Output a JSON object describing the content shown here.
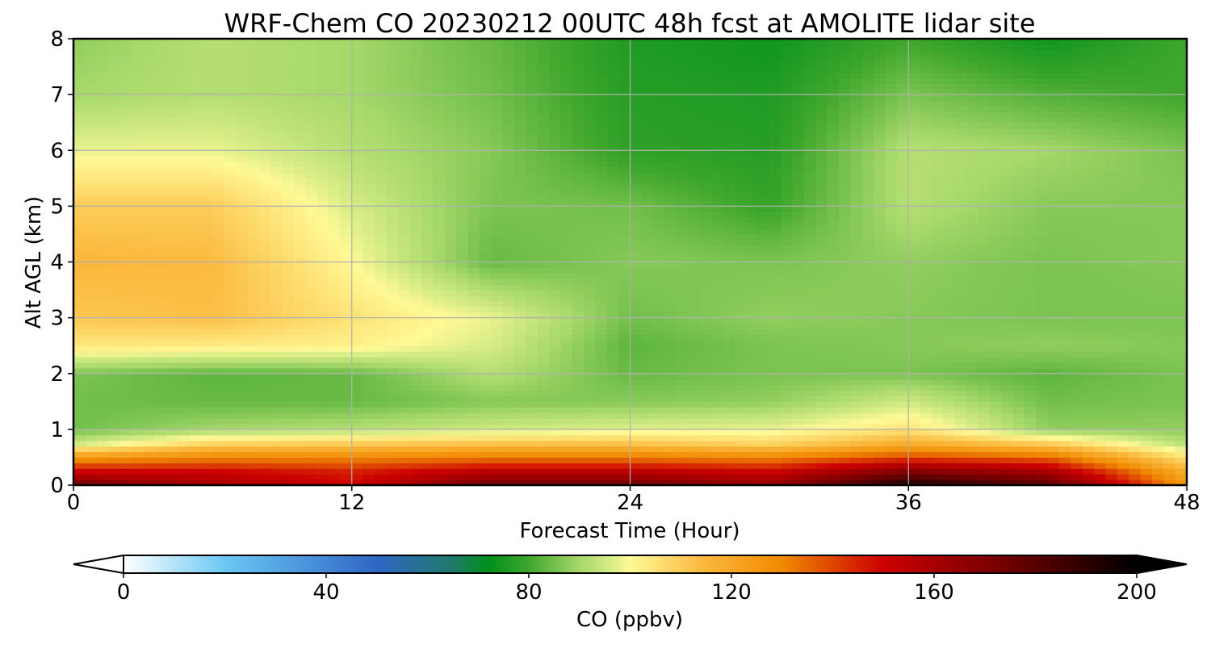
{
  "chart_data": {
    "type": "heatmap",
    "title": "WRF-Chem CO  20230212 00UTC 48h fcst at AMOLITE lidar site",
    "xlabel": "Forecast Time (Hour)",
    "ylabel": "Alt AGL (km)",
    "xlim": [
      0,
      48
    ],
    "ylim": [
      0,
      8
    ],
    "x_ticks": [
      "0",
      "12",
      "24",
      "36",
      "48"
    ],
    "y_ticks": [
      "0",
      "1",
      "2",
      "3",
      "4",
      "5",
      "6",
      "7",
      "8"
    ],
    "grid": true,
    "x_hours": [
      0,
      6,
      12,
      18,
      24,
      30,
      36,
      42,
      48
    ],
    "y_km": [
      0,
      0.25,
      0.5,
      0.75,
      1,
      1.5,
      2,
      2.5,
      3,
      4,
      5,
      6,
      7,
      8
    ],
    "values": [
      [
        175,
        160,
        150,
        175,
        175,
        165,
        195,
        180,
        125
      ],
      [
        150,
        150,
        145,
        155,
        155,
        150,
        170,
        160,
        118
      ],
      [
        125,
        130,
        130,
        132,
        132,
        130,
        140,
        135,
        105
      ],
      [
        95,
        108,
        110,
        112,
        112,
        108,
        118,
        110,
        92
      ],
      [
        85,
        90,
        92,
        95,
        97,
        98,
        105,
        88,
        88
      ],
      [
        85,
        84,
        84,
        87,
        87,
        88,
        95,
        85,
        86
      ],
      [
        86,
        83,
        84,
        92,
        84,
        86,
        86,
        83,
        86
      ],
      [
        104,
        103,
        102,
        96,
        83,
        86,
        87,
        88,
        87
      ],
      [
        111,
        113,
        105,
        98,
        85,
        88,
        87,
        86,
        86
      ],
      [
        115,
        114,
        100,
        84,
        87,
        86,
        88,
        86,
        87
      ],
      [
        110,
        110,
        96,
        86,
        85,
        79,
        92,
        87,
        87
      ],
      [
        98,
        98,
        92,
        87,
        78,
        77,
        92,
        90,
        86
      ],
      [
        90,
        92,
        90,
        85,
        77,
        76,
        86,
        82,
        80
      ],
      [
        88,
        92,
        90,
        84,
        76,
        74,
        80,
        74,
        80
      ]
    ],
    "colorbar": {
      "label": "CO  (ppbv)",
      "min": 0,
      "max": 200,
      "ticks": [
        "0",
        "40",
        "80",
        "120",
        "160",
        "200"
      ],
      "extend": "both",
      "colors": [
        {
          "v": 0,
          "c": "#ffffff"
        },
        {
          "v": 20,
          "c": "#6ac8f5"
        },
        {
          "v": 50,
          "c": "#2f66c4"
        },
        {
          "v": 65,
          "c": "#1f7a6a"
        },
        {
          "v": 72,
          "c": "#00901a"
        },
        {
          "v": 80,
          "c": "#3ea62c"
        },
        {
          "v": 90,
          "c": "#a6d86a"
        },
        {
          "v": 96,
          "c": "#d6ec84"
        },
        {
          "v": 100,
          "c": "#fff996"
        },
        {
          "v": 115,
          "c": "#fbb63a"
        },
        {
          "v": 130,
          "c": "#f08a00"
        },
        {
          "v": 150,
          "c": "#cc0000"
        },
        {
          "v": 175,
          "c": "#6e0000"
        },
        {
          "v": 200,
          "c": "#000000"
        }
      ]
    }
  }
}
